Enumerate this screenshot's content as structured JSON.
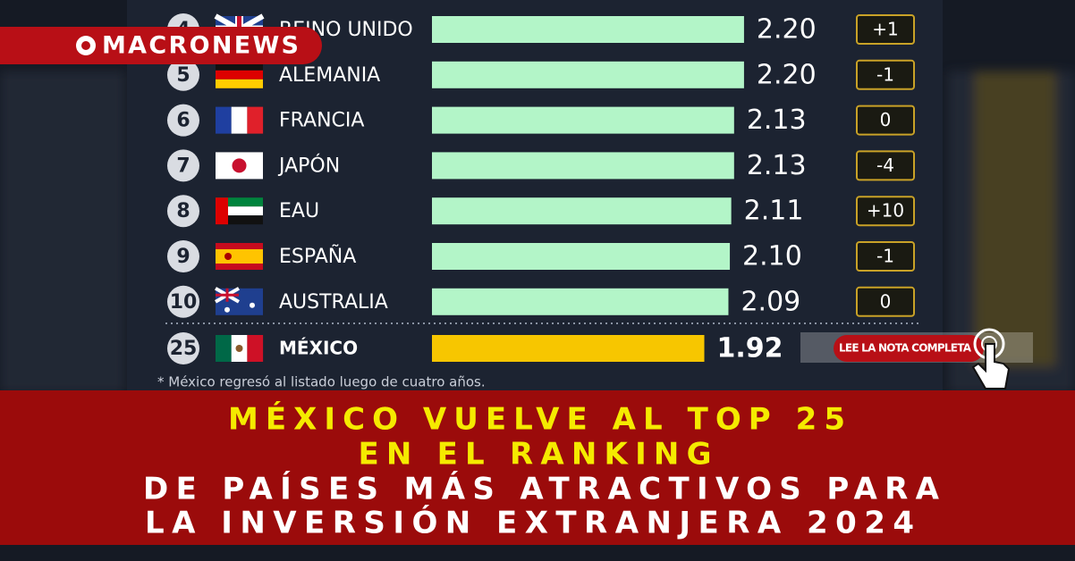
{
  "brand": "MACRONEWS",
  "chart_data": {
    "type": "bar",
    "orientation": "horizontal",
    "ranks": [
      4,
      5,
      6,
      7,
      8,
      9,
      10,
      25
    ],
    "categories": [
      "REINO UNIDO",
      "ALEMANIA",
      "FRANCIA",
      "JAPÓN",
      "EAU",
      "ESPAÑA",
      "AUSTRALIA",
      "MÉXICO"
    ],
    "values": [
      2.2,
      2.2,
      2.13,
      2.13,
      2.11,
      2.1,
      2.09,
      1.92
    ],
    "value_labels": [
      "2.20",
      "2.20",
      "2.13",
      "2.13",
      "2.11",
      "2.10",
      "2.09",
      "1.92"
    ],
    "colors": [
      "#b3f5c8",
      "#b3f5c8",
      "#b3f5c8",
      "#b3f5c8",
      "#b3f5c8",
      "#b3f5c8",
      "#b3f5c8",
      "#f7c600"
    ],
    "changes": [
      "+1",
      "-1",
      "0",
      "-4",
      "+10",
      "-1",
      "0"
    ],
    "footnote": "* México regresó al listado luego de cuatro años."
  },
  "cta": "LEE LA NOTA COMPLETA",
  "headline": [
    "MÉXICO VUELVE AL TOP 25",
    "EN EL RANKING",
    "DE PAÍSES MÁS ATRACTIVOS PARA",
    "LA INVERSIÓN EXTRANJERA 2024"
  ]
}
